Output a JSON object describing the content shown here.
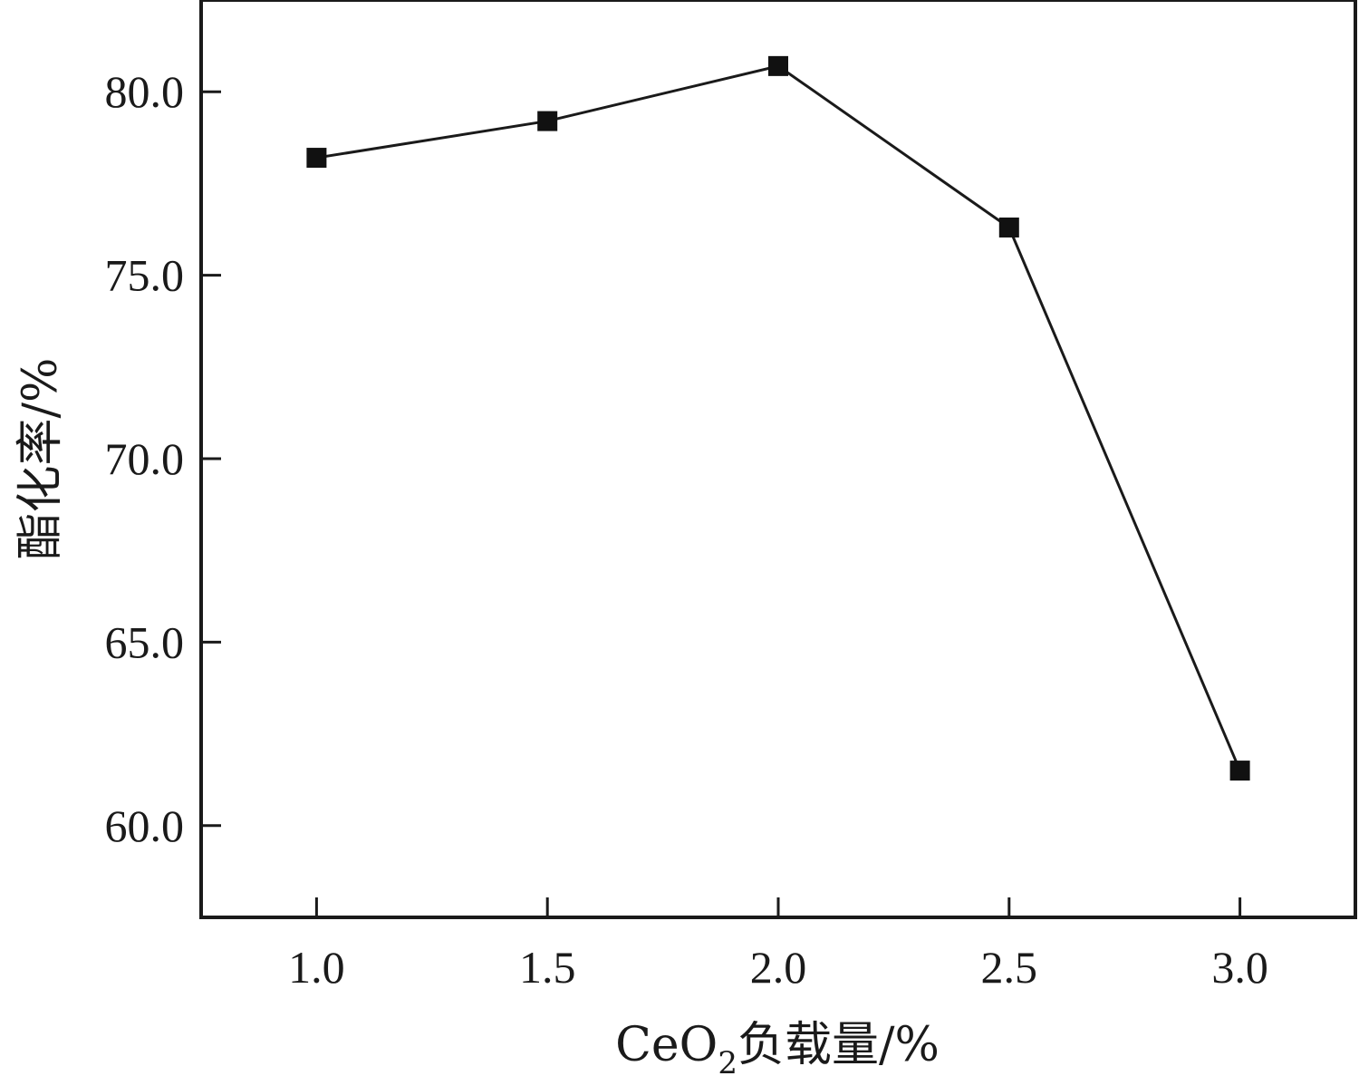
{
  "chart_data": {
    "type": "line",
    "title": "",
    "xlabel_main": "CeO",
    "xlabel_sub": "2",
    "xlabel_rest": "负载量/%",
    "ylabel": "酯化率/%",
    "xlim": [
      0.75,
      3.25
    ],
    "ylim": [
      57.5,
      82.5
    ],
    "x_ticks": [
      "1.0",
      "1.5",
      "2.0",
      "2.5",
      "3.0"
    ],
    "y_ticks": [
      "60.0",
      "65.0",
      "70.0",
      "75.0",
      "80.0"
    ],
    "x": [
      1.0,
      1.5,
      2.0,
      2.5,
      3.0
    ],
    "y": [
      78.2,
      79.2,
      80.7,
      76.3,
      61.5
    ],
    "marker": "square",
    "grid": false,
    "colors": {
      "line": "#1a1a1a",
      "marker": "#111111"
    }
  }
}
